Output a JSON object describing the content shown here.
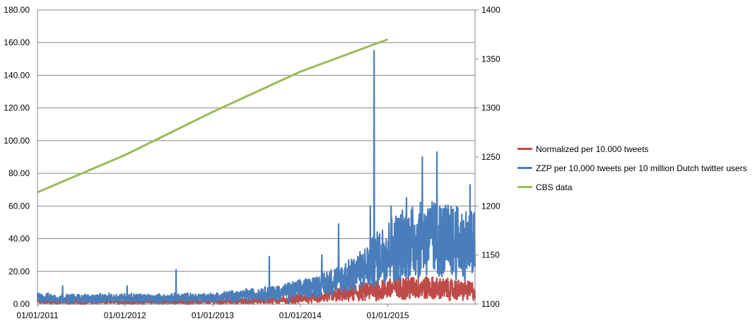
{
  "chart_data": {
    "type": "line",
    "x_ticks": [
      "01/01/2011",
      "01/01/2012",
      "01/01/2013",
      "01/01/2014",
      "01/01/2015"
    ],
    "xlim": [
      "2011-01-01",
      "2015-12-31"
    ],
    "y_left": {
      "ylim": [
        0,
        180
      ],
      "ticks": [
        "0.00",
        "20.00",
        "40.00",
        "60.00",
        "80.00",
        "100.00",
        "120.00",
        "140.00",
        "160.00",
        "180.00"
      ]
    },
    "y_right": {
      "ylim": [
        1100,
        1400
      ],
      "ticks": [
        "1100",
        "1150",
        "1200",
        "1250",
        "1300",
        "1350",
        "1400"
      ]
    },
    "grid": true,
    "legend_position": "right",
    "series": [
      {
        "name": "Normalized per 10.000 tweets",
        "color": "#be4b48",
        "axis": "left",
        "points": [
          [
            "2011-01-01",
            1.5
          ],
          [
            "2011-07-01",
            1.5
          ],
          [
            "2012-01-01",
            1.5
          ],
          [
            "2012-07-01",
            1.5
          ],
          [
            "2013-01-01",
            1.5
          ],
          [
            "2013-07-01",
            2
          ],
          [
            "2013-11-01",
            2.5
          ],
          [
            "2014-01-01",
            3.5
          ],
          [
            "2014-04-01",
            4.5
          ],
          [
            "2014-07-01",
            6
          ],
          [
            "2014-10-01",
            8
          ],
          [
            "2014-12-01",
            9
          ],
          [
            "2015-03-01",
            10
          ],
          [
            "2015-06-01",
            10
          ],
          [
            "2015-09-01",
            9
          ],
          [
            "2015-12-31",
            8
          ]
        ]
      },
      {
        "name": "ZZP per 10,000 tweets per 10 million Dutch twitter users",
        "color": "#4a7ebb",
        "axis": "left",
        "points": [
          [
            "2011-01-01",
            4
          ],
          [
            "2011-04-01",
            3.5
          ],
          [
            "2011-07-01",
            3.5
          ],
          [
            "2011-10-01",
            3.5
          ],
          [
            "2012-01-01",
            4
          ],
          [
            "2012-04-01",
            3.5
          ],
          [
            "2012-07-01",
            3.5
          ],
          [
            "2012-10-01",
            4
          ],
          [
            "2013-01-01",
            4
          ],
          [
            "2013-04-01",
            5
          ],
          [
            "2013-07-01",
            6
          ],
          [
            "2013-10-01",
            7
          ],
          [
            "2014-01-01",
            9
          ],
          [
            "2014-04-01",
            12
          ],
          [
            "2014-07-01",
            16
          ],
          [
            "2014-10-01",
            22
          ],
          [
            "2015-01-01",
            33
          ],
          [
            "2015-04-01",
            38
          ],
          [
            "2015-07-01",
            40
          ],
          [
            "2015-10-01",
            38
          ],
          [
            "2015-12-31",
            36
          ]
        ],
        "peaks": [
          [
            "2011-04-16",
            11
          ],
          [
            "2012-01-10",
            11
          ],
          [
            "2012-08-01",
            21
          ],
          [
            "2013-08-25",
            29
          ],
          [
            "2013-11-15",
            0
          ],
          [
            "2014-04-01",
            30
          ],
          [
            "2014-06-10",
            49
          ],
          [
            "2014-10-20",
            60
          ],
          [
            "2014-11-05",
            155
          ],
          [
            "2015-01-15",
            60
          ],
          [
            "2015-03-20",
            65
          ],
          [
            "2015-05-25",
            90
          ],
          [
            "2015-07-25",
            93
          ],
          [
            "2015-12-10",
            73
          ]
        ]
      },
      {
        "name": "CBS data",
        "color": "#9bbb59",
        "axis": "right",
        "points": [
          [
            "2011-01-01",
            1214
          ],
          [
            "2012-01-01",
            1252
          ],
          [
            "2013-01-01",
            1296
          ],
          [
            "2014-01-01",
            1337
          ],
          [
            "2015-01-01",
            1370
          ]
        ]
      }
    ]
  }
}
